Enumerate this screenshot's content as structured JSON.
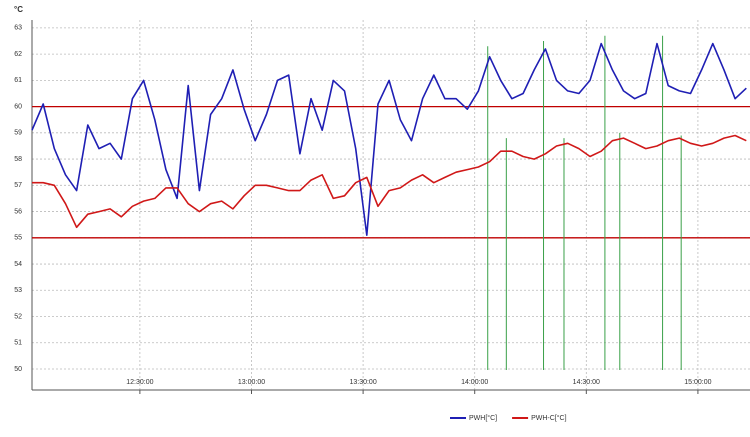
{
  "chart_data": {
    "type": "line",
    "y_axis_label": "°C",
    "x": [
      "12:01:00",
      "12:04:00",
      "12:07:00",
      "12:10:00",
      "12:13:00",
      "12:16:00",
      "12:19:00",
      "12:22:00",
      "12:25:00",
      "12:28:00",
      "12:31:00",
      "12:34:00",
      "12:37:00",
      "12:40:00",
      "12:43:00",
      "12:46:00",
      "12:49:00",
      "12:52:00",
      "12:55:00",
      "12:58:00",
      "13:01:00",
      "13:04:00",
      "13:07:00",
      "13:10:00",
      "13:13:00",
      "13:16:00",
      "13:19:00",
      "13:22:00",
      "13:25:00",
      "13:28:00",
      "13:31:00",
      "13:34:00",
      "13:37:00",
      "13:40:00",
      "13:43:00",
      "13:46:00",
      "13:49:00",
      "13:52:00",
      "13:55:00",
      "13:58:00",
      "14:01:00",
      "14:04:00",
      "14:07:00",
      "14:10:00",
      "14:13:00",
      "14:16:00",
      "14:19:00",
      "14:22:00",
      "14:25:00",
      "14:28:00",
      "14:31:00",
      "14:34:00",
      "14:37:00",
      "14:40:00",
      "14:43:00",
      "14:46:00",
      "14:49:00",
      "14:52:00",
      "14:55:00",
      "14:58:00",
      "15:01:00",
      "15:04:00",
      "15:07:00",
      "15:10:00",
      "15:13:00"
    ],
    "series": [
      {
        "name": "PWH[°C]",
        "color": "#1f1fb4",
        "values": [
          59.1,
          60.1,
          58.4,
          57.4,
          56.8,
          59.3,
          58.4,
          58.6,
          58.0,
          60.3,
          61.0,
          59.5,
          57.6,
          56.5,
          60.8,
          56.8,
          59.7,
          60.3,
          61.4,
          59.9,
          58.7,
          59.7,
          61.0,
          61.2,
          58.2,
          60.3,
          59.1,
          61.0,
          60.6,
          58.4,
          55.1,
          60.1,
          61.0,
          59.5,
          58.7,
          60.3,
          61.2,
          60.3,
          60.3,
          59.9,
          60.6,
          61.9,
          61.0,
          60.3,
          60.5,
          61.4,
          62.2,
          61.0,
          60.6,
          60.5,
          61.0,
          62.4,
          61.4,
          60.6,
          60.3,
          60.5,
          62.4,
          60.8,
          60.6,
          60.5,
          61.4,
          62.4,
          61.4,
          60.3,
          60.7
        ]
      },
      {
        "name": "PWH-C[°C]",
        "color": "#d01818",
        "values": [
          57.1,
          57.1,
          57.0,
          56.3,
          55.4,
          55.9,
          56.0,
          56.1,
          55.8,
          56.2,
          56.4,
          56.5,
          56.9,
          56.9,
          56.3,
          56.0,
          56.3,
          56.4,
          56.1,
          56.6,
          57.0,
          57.0,
          56.9,
          56.8,
          56.8,
          57.2,
          57.4,
          56.5,
          56.6,
          57.1,
          57.3,
          56.2,
          56.8,
          56.9,
          57.2,
          57.4,
          57.1,
          57.3,
          57.5,
          57.6,
          57.7,
          57.9,
          58.3,
          58.3,
          58.1,
          58.0,
          58.2,
          58.5,
          58.6,
          58.4,
          58.1,
          58.3,
          58.7,
          58.8,
          58.6,
          58.4,
          58.5,
          58.7,
          58.8,
          58.6,
          58.5,
          58.6,
          58.8,
          58.9,
          58.7
        ]
      }
    ],
    "reference_lines": {
      "color": "#c00000",
      "values": [
        60,
        55
      ]
    },
    "markers": {
      "color": "#3aa048",
      "x": [
        "14:03:30",
        "14:08:30",
        "14:18:30",
        "14:24:00",
        "14:35:00",
        "14:39:00",
        "14:50:30",
        "14:55:30"
      ],
      "top": [
        62.3,
        58.8,
        62.5,
        58.8,
        62.7,
        59.0,
        62.7,
        58.9
      ]
    },
    "xlim": [
      "12:01:00",
      "15:14:00"
    ],
    "xticks": [
      "12:30:00",
      "13:00:00",
      "13:30:00",
      "14:00:00",
      "14:30:00",
      "15:00:00"
    ],
    "ylim": [
      49.2,
      63.3
    ],
    "yticks": [
      50,
      51,
      52,
      53,
      54,
      55,
      56,
      57,
      58,
      59,
      60,
      61,
      62,
      63
    ],
    "grid": true,
    "legend": "bottom"
  }
}
